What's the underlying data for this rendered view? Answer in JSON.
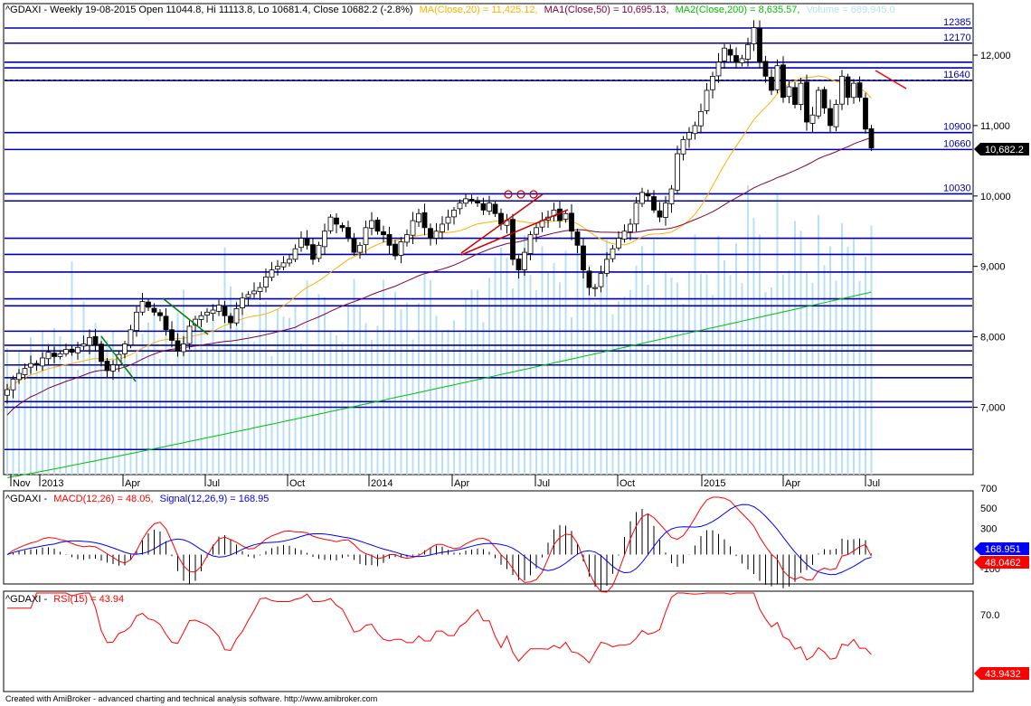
{
  "header": {
    "main": {
      "prefix": "^GDAXI - Weekly 19-08-2015 Open 11044.8, Hi 11113.8, Lo 10681.4, Close 10682.2 (-2.8%)",
      "ma": "MA(Close,20) = 11,425.12,",
      "ma1": "MA1(Close,50) = 10,695.13,",
      "ma2": "MA2(Close,200) = 8,635.57,",
      "vol": "Volume = 689,945.0"
    },
    "macd": {
      "prefix": "^GDAXI -",
      "macd": "MACD(12,26) = 48.05,",
      "signal": "Signal(12,26,9) = 168.95"
    },
    "rsi": {
      "prefix": "^GDAXI -",
      "rsi": "RSI(15) = 43.94"
    }
  },
  "colors": {
    "level_line": "#0000aa",
    "ma20": "#ffb000",
    "ma50": "#800040",
    "ma200": "#00c000",
    "volume": "#b8e0f8",
    "macd": "#ff0000",
    "signal": "#0000ff",
    "rsi": "#ff0000",
    "up_candle": "#ffffff",
    "down_candle": "#000000"
  },
  "chart_data": [
    {
      "type": "candlestick",
      "id": "price",
      "title": "^GDAXI - Weekly",
      "x_ticks": [
        "Nov",
        "2013",
        "Apr",
        "Jul",
        "Oct",
        "2014",
        "Apr",
        "Jul",
        "Oct",
        "2015",
        "Apr",
        "Jul"
      ],
      "y_ticks": [
        "7,000",
        "8,000",
        "9,000",
        "10,000",
        "11,000",
        "12,000"
      ],
      "ylim": [
        6000,
        12500
      ],
      "last_close_label": "10,682.2",
      "start_close": 7250,
      "closes": [
        7250,
        7400,
        7480,
        7550,
        7620,
        7600,
        7700,
        7780,
        7720,
        7760,
        7820,
        7780,
        7850,
        7900,
        7990,
        7880,
        7650,
        7520,
        7600,
        7750,
        7900,
        8100,
        8350,
        8500,
        8420,
        8350,
        8300,
        8100,
        7950,
        7800,
        7900,
        8150,
        8250,
        8300,
        8350,
        8380,
        8450,
        8300,
        8200,
        8400,
        8550,
        8600,
        8650,
        8700,
        8850,
        8950,
        9000,
        9050,
        9100,
        9250,
        9400,
        9300,
        9100,
        9300,
        9500,
        9700,
        9600,
        9550,
        9400,
        9200,
        9300,
        9550,
        9650,
        9500,
        9450,
        9300,
        9150,
        9350,
        9450,
        9650,
        9750,
        9550,
        9400,
        9500,
        9600,
        9700,
        9800,
        9900,
        9960,
        9950,
        9900,
        9800,
        9900,
        9750,
        9600,
        9650,
        9100,
        8950,
        9200,
        9450,
        9550,
        9650,
        9700,
        9800,
        9650,
        9750,
        9500,
        9300,
        8950,
        8700,
        8700,
        8900,
        9100,
        9250,
        9400,
        9500,
        9600,
        9900,
        10050,
        10000,
        9800,
        9700,
        9900,
        10100,
        10600,
        10800,
        10900,
        11000,
        11200,
        11500,
        11700,
        11900,
        12100,
        12000,
        11900,
        11950,
        12150,
        12390,
        11900,
        11700,
        11500,
        11850,
        11400,
        11550,
        11300,
        11600,
        11050,
        11150,
        11500,
        11250,
        11000,
        11300,
        11700,
        11400,
        11600,
        11400,
        10950,
        10682
      ],
      "levels": [
        12385,
        12170,
        11900,
        11820,
        11640,
        10900,
        10660,
        10030,
        9930,
        9400,
        9170,
        8920,
        8540,
        8440,
        8080,
        7880,
        7800,
        7600,
        7420,
        7080,
        7000,
        6400
      ],
      "level_labels": [
        {
          "value": 12385,
          "text": "12385"
        },
        {
          "value": 12170,
          "text": "12170"
        },
        {
          "value": 11640,
          "text": "11640"
        },
        {
          "value": 10900,
          "text": "10900"
        },
        {
          "value": 10660,
          "text": "10660"
        },
        {
          "value": 10030,
          "text": "10030"
        }
      ],
      "ma200_range": [
        6000,
        8635.57
      ],
      "volume_max": 1000000,
      "volume_start": 300000
    },
    {
      "type": "line",
      "id": "macd",
      "title": "MACD(12,26) / Signal(12,26,9)",
      "y_ticks": [
        "700",
        "500",
        "300",
        "-100"
      ],
      "ylim": [
        -200,
        780
      ],
      "zero": 40,
      "series": [
        {
          "name": "MACD(12,26)",
          "last": 48.05
        },
        {
          "name": "Signal(12,26,9)",
          "last": 168.95
        }
      ],
      "labels": {
        "signal_last": "168.951",
        "macd_last": "48.0462"
      }
    },
    {
      "type": "line",
      "id": "rsi",
      "title": "RSI(15)",
      "y_ticks": [
        "70.0"
      ],
      "ylim": [
        15,
        90
      ],
      "series": [
        {
          "name": "RSI(15)",
          "last": 43.94
        }
      ],
      "labels": {
        "rsi_last": "43.9432"
      }
    }
  ],
  "footer": {
    "credit": "Created with AmiBroker - advanced charting and technical analysis software. http://www.amibroker.com"
  }
}
